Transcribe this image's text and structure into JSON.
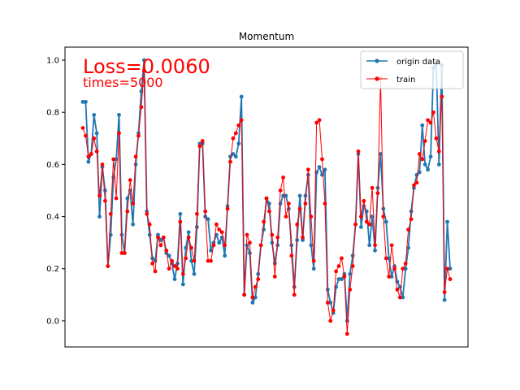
{
  "chart_data": {
    "type": "line",
    "title": "Momentum",
    "xlabel": "",
    "ylabel": "",
    "xticks_visible": false,
    "ylim": [
      -0.1,
      1.05
    ],
    "yticks": [
      0.0,
      0.2,
      0.4,
      0.6,
      0.8,
      1.0
    ],
    "ytick_labels": [
      "0.0",
      "0.2",
      "0.4",
      "0.6",
      "0.8",
      "1.0"
    ],
    "grid": false,
    "legend_position": "top-right",
    "annotations": {
      "loss": "Loss=0.0060",
      "times": "times=5000"
    },
    "series": [
      {
        "name": "origin data",
        "color": "#1f77b4",
        "marker": "circle",
        "values": [
          0.84,
          0.84,
          0.61,
          0.64,
          0.79,
          0.72,
          0.4,
          0.59,
          0.5,
          0.21,
          0.33,
          0.55,
          0.62,
          0.79,
          0.33,
          0.26,
          0.47,
          0.5,
          0.37,
          0.6,
          0.72,
          0.88,
          1.0,
          0.42,
          0.33,
          0.24,
          0.23,
          0.33,
          0.31,
          0.32,
          0.26,
          0.25,
          0.22,
          0.16,
          0.22,
          0.41,
          0.14,
          0.28,
          0.34,
          0.23,
          0.18,
          0.36,
          0.68,
          0.68,
          0.4,
          0.39,
          0.27,
          0.3,
          0.33,
          0.3,
          0.32,
          0.25,
          0.44,
          0.63,
          0.64,
          0.63,
          0.68,
          0.86,
          0.1,
          0.29,
          0.26,
          0.07,
          0.09,
          0.18,
          0.29,
          0.35,
          0.47,
          0.45,
          0.3,
          0.22,
          0.29,
          0.45,
          0.48,
          0.48,
          0.43,
          0.29,
          0.13,
          0.31,
          0.48,
          0.31,
          0.48,
          0.56,
          0.29,
          0.2,
          0.57,
          0.59,
          0.56,
          0.58,
          0.12,
          0.07,
          0.03,
          0.13,
          0.16,
          0.16,
          0.18,
          0.0,
          0.18,
          0.25,
          0.37,
          0.64,
          0.36,
          0.44,
          0.42,
          0.29,
          0.4,
          0.27,
          0.51,
          0.64,
          0.43,
          0.38,
          0.24,
          0.17,
          0.21,
          0.15,
          0.13,
          0.09,
          0.2,
          0.28,
          0.42,
          0.51,
          0.56,
          0.57,
          0.75,
          0.6,
          0.58,
          0.63,
          0.97,
          0.99,
          0.6,
          0.98,
          0.08,
          0.38,
          0.2
        ]
      },
      {
        "name": "train",
        "color": "#ff0000",
        "marker": "circle",
        "values": [
          0.74,
          0.71,
          0.63,
          0.64,
          0.7,
          0.65,
          0.48,
          0.6,
          0.46,
          0.21,
          0.41,
          0.62,
          0.47,
          0.72,
          0.26,
          0.26,
          0.42,
          0.54,
          0.45,
          0.63,
          0.71,
          0.82,
          0.96,
          0.41,
          0.37,
          0.22,
          0.19,
          0.32,
          0.29,
          0.32,
          0.27,
          0.2,
          0.23,
          0.21,
          0.2,
          0.38,
          0.18,
          0.24,
          0.32,
          0.28,
          0.23,
          0.41,
          0.67,
          0.69,
          0.42,
          0.23,
          0.23,
          0.29,
          0.37,
          0.35,
          0.34,
          0.29,
          0.43,
          0.61,
          0.7,
          0.72,
          0.75,
          0.77,
          0.1,
          0.33,
          0.3,
          0.09,
          0.13,
          0.16,
          0.29,
          0.38,
          0.47,
          0.42,
          0.33,
          0.17,
          0.32,
          0.5,
          0.55,
          0.4,
          0.45,
          0.25,
          0.1,
          0.37,
          0.43,
          0.32,
          0.45,
          0.58,
          0.4,
          0.23,
          0.76,
          0.77,
          0.62,
          0.45,
          0.07,
          0.0,
          0.04,
          0.19,
          0.21,
          0.24,
          0.17,
          -0.05,
          0.12,
          0.21,
          0.37,
          0.65,
          0.4,
          0.46,
          0.38,
          0.37,
          0.51,
          0.29,
          0.49,
          0.93,
          0.4,
          0.24,
          0.17,
          0.29,
          0.2,
          0.12,
          0.09,
          0.2,
          0.22,
          0.35,
          0.39,
          0.52,
          0.53,
          0.64,
          0.62,
          0.69,
          0.77,
          0.76,
          0.8,
          0.7,
          0.65,
          0.86,
          0.11,
          0.2,
          0.16
        ]
      }
    ]
  }
}
